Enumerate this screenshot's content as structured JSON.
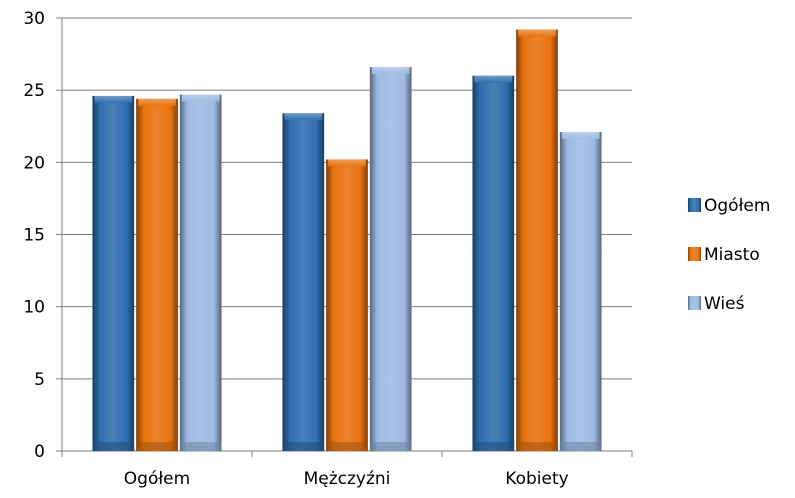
{
  "chart_data": {
    "type": "bar",
    "categories": [
      "Ogółem",
      "Mężczyźni",
      "Kobiety"
    ],
    "series": [
      {
        "name": "Ogółem",
        "values": [
          24.6,
          23.4,
          26.0
        ],
        "color": "#2f6eb0"
      },
      {
        "name": "Miasto",
        "values": [
          24.4,
          20.2,
          29.2
        ],
        "color": "#e8720f"
      },
      {
        "name": "Wieś",
        "values": [
          24.7,
          26.6,
          22.1
        ],
        "color": "#9dbbe3"
      }
    ],
    "ylim": [
      0,
      30
    ],
    "yticks": [
      0,
      5,
      10,
      15,
      20,
      25,
      30
    ],
    "grid": true,
    "legend_position": "right"
  }
}
